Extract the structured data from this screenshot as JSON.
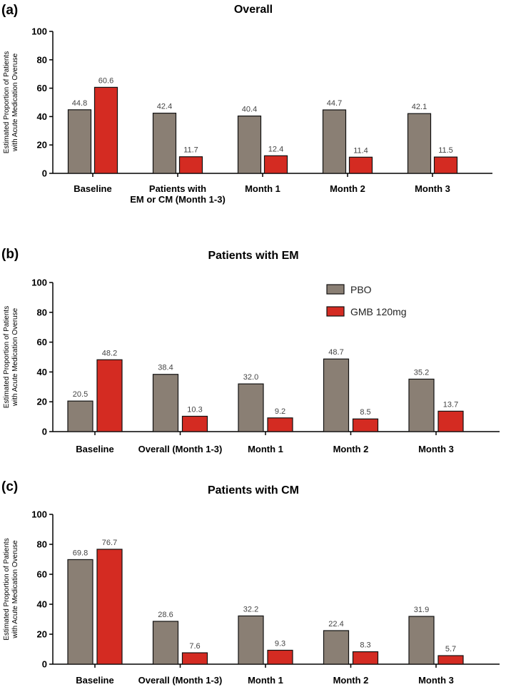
{
  "colors": {
    "pbo": "#8a7f74",
    "gmb": "#d42b22",
    "edge": "#111111"
  },
  "legend": [
    {
      "label": "PBO",
      "color": "#8a7f74"
    },
    {
      "label": "GMB 120mg",
      "color": "#d42b22"
    }
  ],
  "chart_data": [
    {
      "type": "bar",
      "panel": "(a)",
      "title": "Overall",
      "ylabel": "Estimated Proportion of Patients with Acute Medication Overuse",
      "ylim": [
        0,
        100
      ],
      "yticks": [
        0,
        20,
        40,
        60,
        80,
        100
      ],
      "categories": [
        [
          "Baseline"
        ],
        [
          "Patients with",
          "EM or CM (Month 1-3)"
        ],
        [
          "Month 1"
        ],
        [
          "Month 2"
        ],
        [
          "Month 3"
        ]
      ],
      "series": [
        {
          "name": "PBO",
          "values": [
            44.8,
            42.4,
            40.4,
            44.7,
            42.1
          ],
          "labels": [
            "44.8",
            "42.4",
            "40.4",
            "44.7",
            "42.1"
          ]
        },
        {
          "name": "GMB 120mg",
          "values": [
            60.6,
            11.7,
            12.4,
            11.4,
            11.5
          ],
          "labels": [
            "60.6",
            "11.7",
            "12.4",
            "11.4",
            "11.5"
          ]
        }
      ]
    },
    {
      "type": "bar",
      "panel": "(b)",
      "title": "Patients with EM",
      "ylabel": "Estimated Proportion of Patients with Acute Medication Overuse",
      "ylim": [
        0,
        100
      ],
      "yticks": [
        0,
        20,
        40,
        60,
        80,
        100
      ],
      "categories": [
        [
          "Baseline"
        ],
        [
          "Overall (Month 1-3)"
        ],
        [
          "Month 1"
        ],
        [
          "Month 2"
        ],
        [
          "Month 3"
        ]
      ],
      "series": [
        {
          "name": "PBO",
          "values": [
            20.5,
            38.4,
            32.0,
            48.7,
            35.2
          ],
          "labels": [
            "20.5",
            "38.4",
            "32.0",
            "48.7",
            "35.2"
          ]
        },
        {
          "name": "GMB 120mg",
          "values": [
            48.2,
            10.3,
            9.2,
            8.5,
            13.7
          ],
          "labels": [
            "48.2",
            "10.3",
            "9.2",
            "8.5",
            "13.7"
          ]
        }
      ]
    },
    {
      "type": "bar",
      "panel": "(c)",
      "title": "Patients with CM",
      "ylabel": "Estimated Proportion of Patients with Acute Medication Overuse",
      "ylim": [
        0,
        100
      ],
      "yticks": [
        0,
        20,
        40,
        60,
        80,
        100
      ],
      "categories": [
        [
          "Baseline"
        ],
        [
          "Overall (Month 1-3)"
        ],
        [
          "Month 1"
        ],
        [
          "Month 2"
        ],
        [
          "Month 3"
        ]
      ],
      "series": [
        {
          "name": "PBO",
          "values": [
            69.8,
            28.6,
            32.2,
            22.4,
            31.9
          ],
          "labels": [
            "69.8",
            "28.6",
            "32.2",
            "22.4",
            "31.9"
          ]
        },
        {
          "name": "GMB 120mg",
          "values": [
            76.7,
            7.6,
            9.3,
            8.3,
            5.7
          ],
          "labels": [
            "76.7",
            "7.6",
            "9.3",
            "8.3",
            "5.7"
          ]
        }
      ]
    }
  ]
}
